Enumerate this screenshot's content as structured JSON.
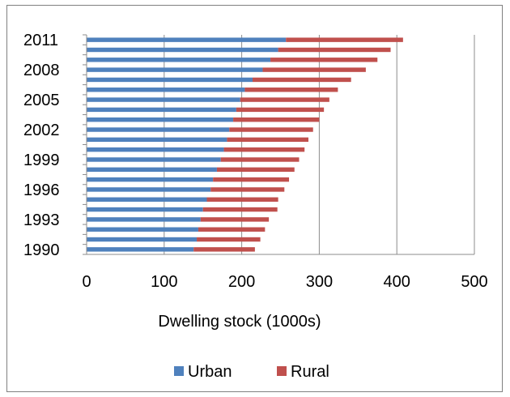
{
  "chart_data": {
    "type": "bar",
    "orientation": "horizontal",
    "stacked": true,
    "title": "",
    "xlabel": "Dwelling stock (1000s)",
    "ylabel": "",
    "xlim": [
      0,
      500
    ],
    "x_ticks": [
      0,
      100,
      200,
      300,
      400,
      500
    ],
    "categories": [
      "1990",
      "1991",
      "1992",
      "1993",
      "1994",
      "1995",
      "1996",
      "1997",
      "1998",
      "1999",
      "2000",
      "2001",
      "2002",
      "2003",
      "2004",
      "2005",
      "2006",
      "2007",
      "2008",
      "2009",
      "2010",
      "2011"
    ],
    "category_labels_shown": [
      "1990",
      "1993",
      "1996",
      "1999",
      "2002",
      "2005",
      "2008",
      "2011"
    ],
    "series": [
      {
        "name": "Urban",
        "color": "#4f81bd",
        "values": [
          138,
          142,
          144,
          147,
          150,
          155,
          160,
          163,
          168,
          173,
          177,
          181,
          184,
          189,
          193,
          198,
          204,
          214,
          227,
          237,
          247,
          257
        ]
      },
      {
        "name": "Rural",
        "color": "#c0504d",
        "values": [
          79,
          82,
          86,
          88,
          96,
          92,
          95,
          98,
          100,
          101,
          104,
          105,
          108,
          111,
          113,
          115,
          120,
          127,
          133,
          138,
          145,
          151
        ]
      }
    ],
    "grid": "vertical",
    "legend": "bottom"
  }
}
